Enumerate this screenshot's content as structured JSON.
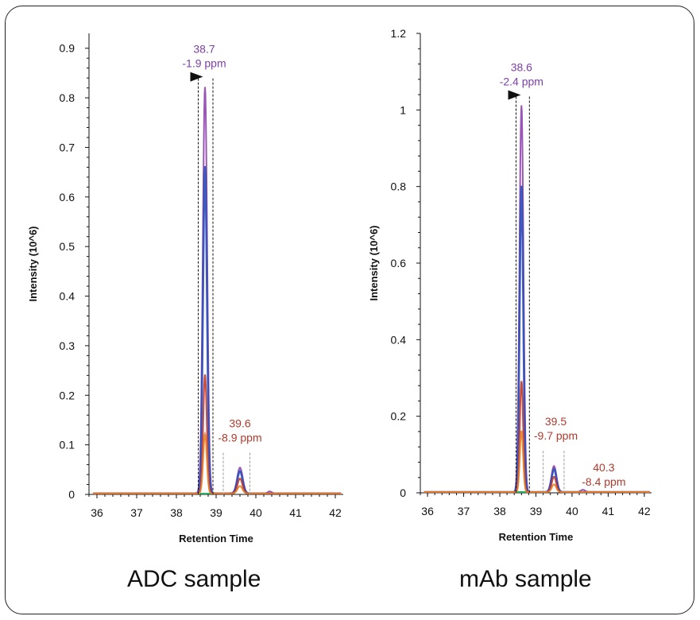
{
  "chart_data": [
    {
      "type": "line",
      "caption": "ADC sample",
      "xlabel": "Retention Time",
      "ylabel": "Intensity (10^6)",
      "xlim": [
        35.8,
        42.2
      ],
      "ylim": [
        0,
        0.93
      ],
      "xticks": [
        36,
        37,
        38,
        39,
        40,
        41,
        42
      ],
      "yticks": [
        0,
        0.1,
        0.2,
        0.3,
        0.4,
        0.5,
        0.6,
        0.7,
        0.8,
        0.9
      ],
      "ytick_labels": [
        "0",
        "0.1",
        "0.2",
        "0.3",
        "0.4",
        "0.5",
        "0.6",
        "0.7",
        "0.8",
        "0.9"
      ],
      "series": [
        {
          "color": "#8e44ad",
          "peaks": [
            {
              "x": 38.72,
              "height": 0.82,
              "sigma": 0.055
            },
            {
              "x": 39.6,
              "height": 0.052,
              "sigma": 0.07
            },
            {
              "x": 40.35,
              "height": 0.004,
              "sigma": 0.05
            }
          ]
        },
        {
          "color": "#2c4db8",
          "peaks": [
            {
              "x": 38.72,
              "height": 0.66,
              "sigma": 0.05
            },
            {
              "x": 39.6,
              "height": 0.045,
              "sigma": 0.065
            }
          ]
        },
        {
          "color": "#c0392b",
          "peaks": [
            {
              "x": 38.72,
              "height": 0.24,
              "sigma": 0.045
            },
            {
              "x": 39.6,
              "height": 0.03,
              "sigma": 0.06
            }
          ]
        },
        {
          "color": "#e67e22",
          "peaks": [
            {
              "x": 38.72,
              "height": 0.12,
              "sigma": 0.045
            },
            {
              "x": 39.6,
              "height": 0.015,
              "sigma": 0.06
            }
          ]
        }
      ],
      "annotations": [
        {
          "line1": "38.7",
          "line2": "-1.9 ppm",
          "x": 38.7,
          "y": 0.82,
          "color": "#7d3fa8",
          "arrow": true,
          "bounds": [
            38.55,
            38.92
          ]
        },
        {
          "line1": "39.6",
          "line2": "-8.9 ppm",
          "x": 39.6,
          "y": 0.052,
          "color": "#b03a2e",
          "arrow": false,
          "bounds": [
            39.18,
            39.85
          ]
        }
      ]
    },
    {
      "type": "line",
      "caption": "mAb sample",
      "xlabel": "Retention Time",
      "ylabel": "Intensity (10^6)",
      "xlim": [
        35.8,
        42.2
      ],
      "ylim": [
        0,
        1.2
      ],
      "xticks": [
        36,
        37,
        38,
        39,
        40,
        41,
        42
      ],
      "yticks": [
        0,
        0.2,
        0.4,
        0.6,
        0.8,
        1,
        1.2
      ],
      "ytick_labels": [
        "0",
        "0.2",
        "0.4",
        "0.6",
        "0.8",
        "1",
        "1.2"
      ],
      "series": [
        {
          "color": "#8e44ad",
          "peaks": [
            {
              "x": 38.6,
              "height": 1.01,
              "sigma": 0.055
            },
            {
              "x": 39.5,
              "height": 0.068,
              "sigma": 0.07
            },
            {
              "x": 40.3,
              "height": 0.006,
              "sigma": 0.06
            }
          ]
        },
        {
          "color": "#2c4db8",
          "peaks": [
            {
              "x": 38.6,
              "height": 0.8,
              "sigma": 0.05
            },
            {
              "x": 39.5,
              "height": 0.06,
              "sigma": 0.065
            }
          ]
        },
        {
          "color": "#c0392b",
          "peaks": [
            {
              "x": 38.6,
              "height": 0.29,
              "sigma": 0.045
            },
            {
              "x": 39.5,
              "height": 0.04,
              "sigma": 0.06
            }
          ]
        },
        {
          "color": "#e67e22",
          "peaks": [
            {
              "x": 38.6,
              "height": 0.16,
              "sigma": 0.045
            },
            {
              "x": 39.5,
              "height": 0.02,
              "sigma": 0.06
            }
          ]
        }
      ],
      "annotations": [
        {
          "line1": "38.6",
          "line2": "-2.4 ppm",
          "x": 38.6,
          "y": 1.01,
          "color": "#7d3fa8",
          "arrow": true,
          "bounds": [
            38.45,
            38.82
          ]
        },
        {
          "line1": "39.5",
          "line2": "-9.7 ppm",
          "x": 39.55,
          "y": 0.068,
          "color": "#b03a2e",
          "arrow": false,
          "bounds": [
            39.2,
            39.78
          ]
        },
        {
          "line1": "40.3",
          "line2": "-8.4 ppm",
          "x": 40.35,
          "y": 0.006,
          "color": "#b03a2e",
          "arrow": false,
          "bounds": []
        }
      ]
    }
  ]
}
